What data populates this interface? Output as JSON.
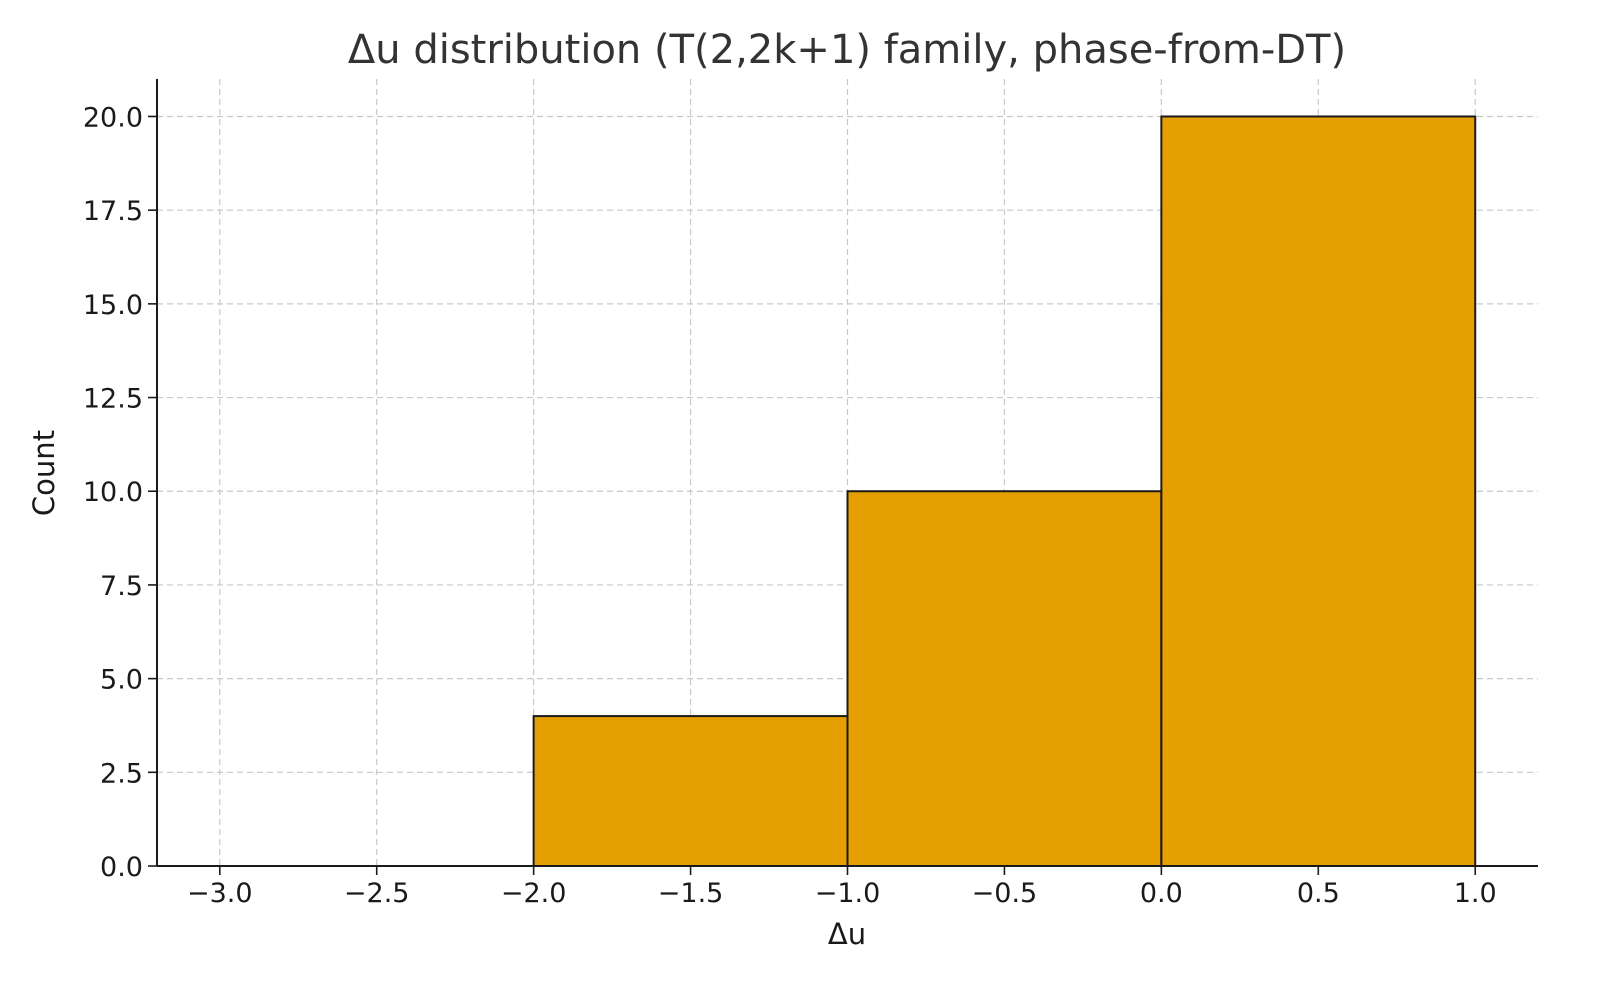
{
  "chart_data": {
    "type": "bar",
    "title": "Δu distribution (T(2,2k+1) family, phase-from-DT)",
    "xlabel": "Δu",
    "ylabel": "Count",
    "bins": [
      {
        "x0": -2.0,
        "x1": -1.0,
        "count": 4
      },
      {
        "x0": -1.0,
        "x1": 0.0,
        "count": 10
      },
      {
        "x0": 0.0,
        "x1": 1.0,
        "count": 20
      }
    ],
    "xlim": [
      -3.2,
      1.2
    ],
    "ylim": [
      0,
      21
    ],
    "xticks": [
      -3.0,
      -2.5,
      -2.0,
      -1.5,
      -1.0,
      -0.5,
      0.0,
      0.5,
      1.0
    ],
    "xtick_labels": [
      "−3.0",
      "−2.5",
      "−2.0",
      "−1.5",
      "−1.0",
      "−0.5",
      "0.0",
      "0.5",
      "1.0"
    ],
    "yticks": [
      0,
      2.5,
      5,
      7.5,
      10,
      12.5,
      15,
      17.5,
      20
    ],
    "ytick_labels": [
      "0.0",
      "2.5",
      "5.0",
      "7.5",
      "10.0",
      "12.5",
      "15.0",
      "17.5",
      "20.0"
    ],
    "grid": true,
    "bar_color": "#E69F00",
    "edge_color": "#1a1a1a"
  }
}
